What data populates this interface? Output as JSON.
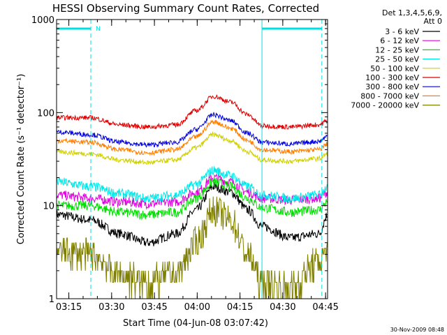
{
  "chart_data": {
    "type": "line",
    "title": "HESSI Observing Summary Count Rates, Corrected",
    "xlabel": "Start Time (04-Jun-08 03:07:42)",
    "ylabel": "Corrected Count Rate (s⁻¹ detector⁻¹)",
    "yscale": "log",
    "ylim": [
      1,
      1000
    ],
    "xlim_minutes": [
      3,
      98
    ],
    "x_tick_labels": [
      "03:15",
      "03:30",
      "03:45",
      "04:00",
      "04:15",
      "04:30",
      "04:45"
    ],
    "x_tick_minutes": [
      7.3,
      22.3,
      37.3,
      52.3,
      67.3,
      82.3,
      97.3
    ],
    "y_tick_labels": [
      "1",
      "10",
      "100",
      "1000"
    ],
    "y_tick_values": [
      1,
      10,
      100,
      1000
    ],
    "legend_header": [
      "Det 1,3,4,5,6,9,",
      "Att 0"
    ],
    "legend_position": "right, outside plot",
    "night_marker_label": "N",
    "cyan_vlines_minutes": [
      3,
      15,
      75,
      96
    ],
    "night_bars_minutes": [
      [
        3,
        15
      ],
      [
        75,
        96
      ]
    ],
    "series": [
      {
        "name": "3 - 6 keV",
        "color": "#000000",
        "t": [
          3,
          15,
          25,
          35,
          45,
          52,
          58,
          64,
          70,
          75,
          85,
          95,
          98
        ],
        "y": [
          8.0,
          7.0,
          5.0,
          4.0,
          5.0,
          9.0,
          16.0,
          14.0,
          9.0,
          6.0,
          4.5,
          5.0,
          8.0
        ]
      },
      {
        "name": "6 - 12 keV",
        "color": "#e000e0",
        "t": [
          3,
          15,
          25,
          35,
          45,
          52,
          58,
          64,
          70,
          75,
          85,
          95,
          98
        ],
        "y": [
          13.0,
          12.0,
          11.0,
          10.5,
          11.0,
          14.0,
          20.0,
          18.0,
          14.0,
          12.0,
          11.5,
          12.0,
          14.0
        ]
      },
      {
        "name": "12 - 25 keV",
        "color": "#00e000",
        "t": [
          3,
          15,
          25,
          35,
          45,
          52,
          58,
          64,
          70,
          75,
          85,
          95,
          98
        ],
        "y": [
          10.0,
          10.0,
          8.5,
          8.0,
          8.5,
          12.0,
          18.0,
          16.0,
          12.0,
          9.5,
          8.5,
          9.0,
          11.0
        ]
      },
      {
        "name": "25 - 50 keV",
        "color": "#00e8e8",
        "t": [
          3,
          15,
          25,
          35,
          45,
          52,
          58,
          64,
          70,
          75,
          85,
          95,
          98
        ],
        "y": [
          18.0,
          16.0,
          13.5,
          12.0,
          13.0,
          17.0,
          24.0,
          21.0,
          16.0,
          13.0,
          12.0,
          13.0,
          16.0
        ]
      },
      {
        "name": "50 - 100 keV",
        "color": "#d0d000",
        "t": [
          3,
          15,
          25,
          35,
          45,
          52,
          58,
          64,
          70,
          75,
          85,
          95,
          98
        ],
        "y": [
          38.0,
          36.0,
          31.0,
          29.0,
          31.0,
          42.0,
          58.0,
          50.0,
          38.0,
          31.0,
          30.0,
          32.0,
          36.0
        ]
      },
      {
        "name": "100 - 300 keV",
        "color": "#e00000",
        "t": [
          3,
          15,
          25,
          35,
          45,
          52,
          58,
          64,
          70,
          75,
          85,
          95,
          98
        ],
        "y": [
          88.0,
          88.0,
          74.0,
          70.0,
          74.0,
          105.0,
          150.0,
          130.0,
          95.0,
          72.0,
          70.0,
          74.0,
          82.0
        ]
      },
      {
        "name": "300 - 800 keV",
        "color": "#0000e0",
        "t": [
          3,
          15,
          25,
          35,
          45,
          52,
          58,
          64,
          70,
          75,
          85,
          95,
          98
        ],
        "y": [
          62.0,
          58.0,
          48.0,
          45.0,
          48.0,
          66.0,
          95.0,
          82.0,
          60.0,
          48.0,
          46.0,
          49.0,
          56.0
        ]
      },
      {
        "name": "800 - 7000 keV",
        "color": "#ff7f00",
        "t": [
          3,
          15,
          25,
          35,
          45,
          52,
          58,
          64,
          70,
          75,
          85,
          95,
          98
        ],
        "y": [
          50.0,
          48.0,
          40.0,
          37.0,
          40.0,
          55.0,
          80.0,
          68.0,
          50.0,
          40.0,
          38.0,
          40.0,
          46.0
        ]
      },
      {
        "name": "7000 - 20000 keV",
        "color": "#808000",
        "t": [
          3,
          15,
          25,
          35,
          45,
          52,
          58,
          64,
          70,
          75,
          85,
          95,
          98
        ],
        "y": [
          3.2,
          3.0,
          1.8,
          1.5,
          1.8,
          4.0,
          9.0,
          7.0,
          3.0,
          1.5,
          1.3,
          2.5,
          3.5
        ]
      }
    ]
  },
  "footer": {
    "date_stamp": "30-Nov-2009 08:48"
  }
}
